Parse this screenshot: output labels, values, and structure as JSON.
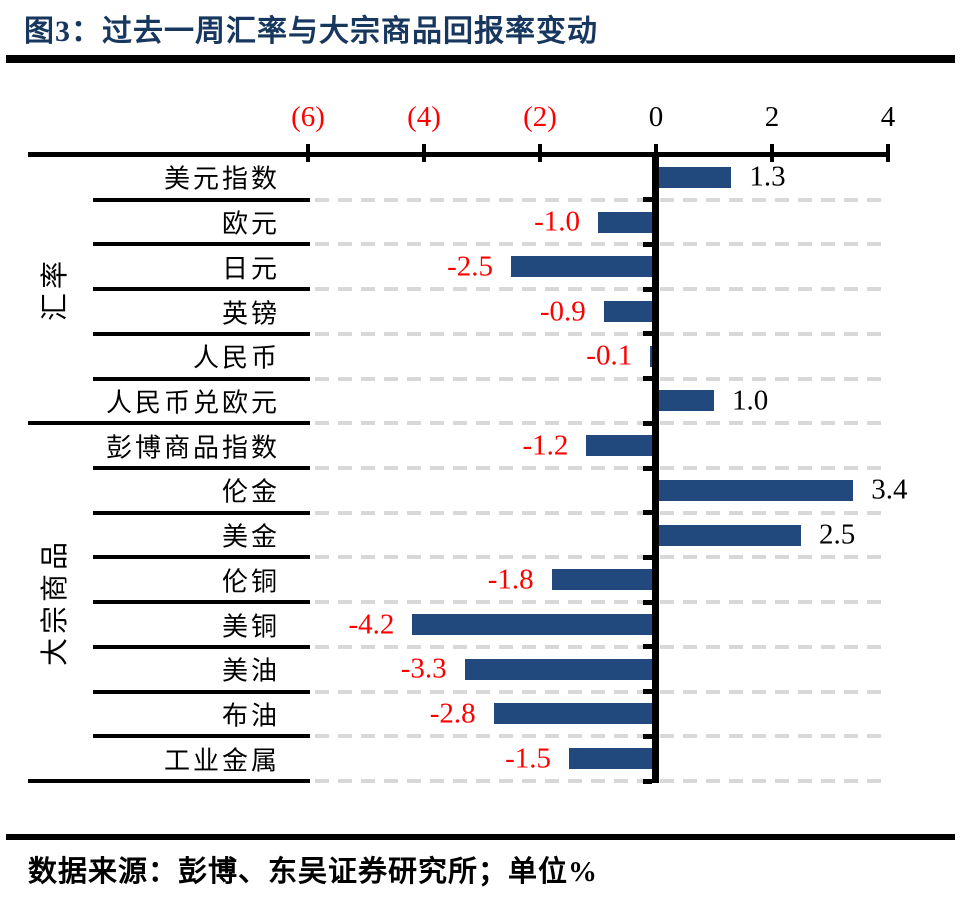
{
  "figure": {
    "title": "图3：过去一周汇率与大宗商品回报率变动",
    "source_note": "数据来源：彭博、东吴证券研究所；单位%"
  },
  "colors": {
    "bar": "#21497D",
    "title_text": "#17375E",
    "negative_text": "#FF0000",
    "positive_text": "#000000",
    "gridline": "#D8D8D8",
    "axis_line": "#000000"
  },
  "chart_data": {
    "type": "bar",
    "orientation": "horizontal",
    "title": "过去一周汇率与大宗商品回报率变动",
    "unit": "%",
    "xlim": [
      -6,
      4
    ],
    "grid": "dashed-horizontal-row-lines",
    "x_ticks": [
      {
        "value": -6,
        "label": "(6)",
        "negative": true
      },
      {
        "value": -4,
        "label": "(4)",
        "negative": true
      },
      {
        "value": -2,
        "label": "(2)",
        "negative": true
      },
      {
        "value": 0,
        "label": "0",
        "negative": false
      },
      {
        "value": 2,
        "label": "2",
        "negative": false
      },
      {
        "value": 4,
        "label": "4",
        "negative": false
      }
    ],
    "groups": [
      {
        "name": "汇率",
        "items": [
          {
            "label": "美元指数",
            "value": 1.3,
            "value_label": "1.3"
          },
          {
            "label": "欧元",
            "value": -1.0,
            "value_label": "-1.0"
          },
          {
            "label": "日元",
            "value": -2.5,
            "value_label": "-2.5"
          },
          {
            "label": "英镑",
            "value": -0.9,
            "value_label": "-0.9"
          },
          {
            "label": "人民币",
            "value": -0.1,
            "value_label": "-0.1"
          },
          {
            "label": "人民币兑欧元",
            "value": 1.0,
            "value_label": "1.0"
          }
        ]
      },
      {
        "name": "大宗商品",
        "items": [
          {
            "label": "彭博商品指数",
            "value": -1.2,
            "value_label": "-1.2"
          },
          {
            "label": "伦金",
            "value": 3.4,
            "value_label": "3.4"
          },
          {
            "label": "美金",
            "value": 2.5,
            "value_label": "2.5"
          },
          {
            "label": "伦铜",
            "value": -1.8,
            "value_label": "-1.8"
          },
          {
            "label": "美铜",
            "value": -4.2,
            "value_label": "-4.2"
          },
          {
            "label": "美油",
            "value": -3.3,
            "value_label": "-3.3"
          },
          {
            "label": "布油",
            "value": -2.8,
            "value_label": "-2.8"
          },
          {
            "label": "工业金属",
            "value": -1.5,
            "value_label": "-1.5"
          }
        ]
      }
    ]
  }
}
